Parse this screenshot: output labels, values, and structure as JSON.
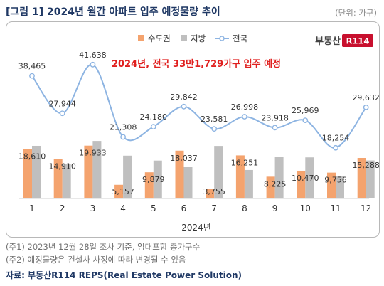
{
  "header": {
    "title": "[그림 1] 2024년 월간 아파트 입주 예정물량 추이",
    "unit": "(단위: 가구)"
  },
  "brand": {
    "text": "부동산",
    "badge": "R114",
    "color": "#c8102e"
  },
  "annotation": "2024년, 전국 33만1,729가구 입주 예정",
  "notes": [
    "(주1) 2023년 12월 28일 조사 기준, 임대포함 총가구수",
    "(주2) 예정물량은 건설사 사정에 따라 변경될 수 있음"
  ],
  "source": "자료: 부동산R114 REPS(Real Estate Power Solution)",
  "chart_data": {
    "type": "bar",
    "categories": [
      "1",
      "2",
      "3",
      "4",
      "5",
      "6",
      "7",
      "8",
      "9",
      "10",
      "11",
      "12"
    ],
    "xlabel": "2024년",
    "series": [
      {
        "name": "수도권",
        "type": "bar",
        "color": "#f4a36e",
        "values": [
          18610,
          14910,
          19933,
          5157,
          9879,
          18037,
          3755,
          16251,
          8225,
          10470,
          9756,
          15288
        ],
        "labels": [
          "18,610",
          "14,910",
          "19,933",
          "5,157",
          "9,879",
          "18,037",
          "3,755",
          "16,251",
          "8,225",
          "10,470",
          "9,756",
          "15,288"
        ]
      },
      {
        "name": "지방",
        "type": "bar",
        "color": "#bfbfbf",
        "values": [
          19855,
          13034,
          21705,
          16151,
          14301,
          11805,
          19826,
          10747,
          15693,
          15499,
          8498,
          14344
        ]
      },
      {
        "name": "전국",
        "type": "line",
        "color": "#8db4e2",
        "values": [
          38465,
          27944,
          41638,
          21308,
          24180,
          29842,
          23581,
          26998,
          23918,
          25969,
          18254,
          29632
        ],
        "labels": [
          "38,465",
          "27,944",
          "41,638",
          "21,308",
          "24,180",
          "29,842",
          "23,581",
          "26,998",
          "23,918",
          "25,969",
          "18,254",
          "29,632"
        ]
      }
    ],
    "legend_position": "top-center"
  }
}
